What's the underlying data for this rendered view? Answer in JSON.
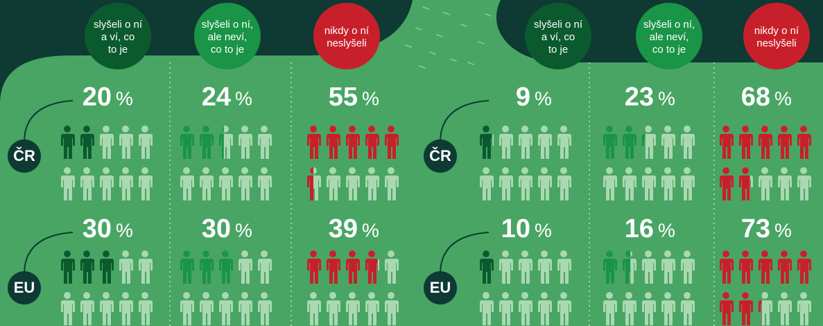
{
  "row_labels": [
    "ČR",
    "EU"
  ],
  "unit": "%",
  "panels": [
    {
      "columns": [
        {
          "label": [
            "slyšeli o ní",
            "a ví, co",
            "to je"
          ],
          "color": "#0b5a2e",
          "values": [
            20,
            30
          ]
        },
        {
          "label": [
            "slyšeli o ní,",
            "ale neví,",
            "co to je"
          ],
          "color": "#1a9447",
          "values": [
            24,
            30
          ]
        },
        {
          "label": [
            "nikdy o ní",
            "neslyšeli"
          ],
          "color": "#c8202a",
          "values": [
            55,
            39
          ]
        }
      ]
    },
    {
      "columns": [
        {
          "label": [
            "slyšeli o ní",
            "a ví, co",
            "to je"
          ],
          "color": "#0b5a2e",
          "values": [
            9,
            10
          ]
        },
        {
          "label": [
            "slyšeli o ní,",
            "ale neví,",
            "co to je"
          ],
          "color": "#1a9447",
          "values": [
            23,
            16
          ]
        },
        {
          "label": [
            "nikdy o ní",
            "neslyšeli"
          ],
          "color": "#c8202a",
          "values": [
            68,
            73
          ]
        }
      ]
    }
  ]
}
